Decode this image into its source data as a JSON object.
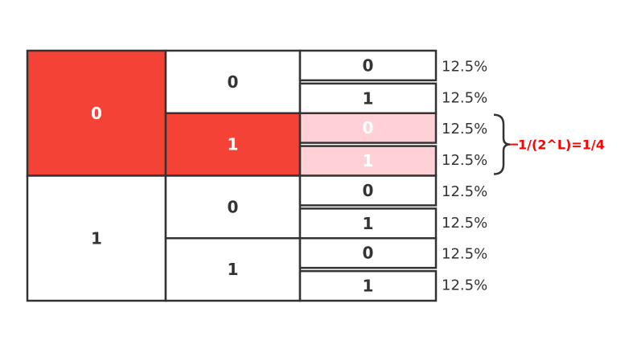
{
  "colors": {
    "border": "#333333",
    "highlight_red": "#f44336",
    "highlight_pink": "#ffd0d5",
    "text_dark": "#333333",
    "text_light": "#ffffff",
    "annotation": "#ff0000"
  },
  "level1": [
    {
      "label": "0",
      "highlight": "red"
    },
    {
      "label": "1",
      "highlight": "none"
    }
  ],
  "level2": [
    {
      "label": "0",
      "highlight": "none"
    },
    {
      "label": "1",
      "highlight": "red"
    },
    {
      "label": "0",
      "highlight": "none"
    },
    {
      "label": "1",
      "highlight": "none"
    }
  ],
  "level3": [
    {
      "label": "0",
      "highlight": "none"
    },
    {
      "label": "1",
      "highlight": "none"
    },
    {
      "label": "0",
      "highlight": "pink"
    },
    {
      "label": "1",
      "highlight": "pink"
    },
    {
      "label": "0",
      "highlight": "none"
    },
    {
      "label": "1",
      "highlight": "none"
    },
    {
      "label": "0",
      "highlight": "none"
    },
    {
      "label": "1",
      "highlight": "none"
    }
  ],
  "percentages": [
    "12.5%",
    "12.5%",
    "12.5%",
    "12.5%",
    "12.5%",
    "12.5%",
    "12.5%",
    "12.5%"
  ],
  "annotation": {
    "text": "1/(2^L)=1/4",
    "brace_rows": [
      2,
      3
    ]
  }
}
